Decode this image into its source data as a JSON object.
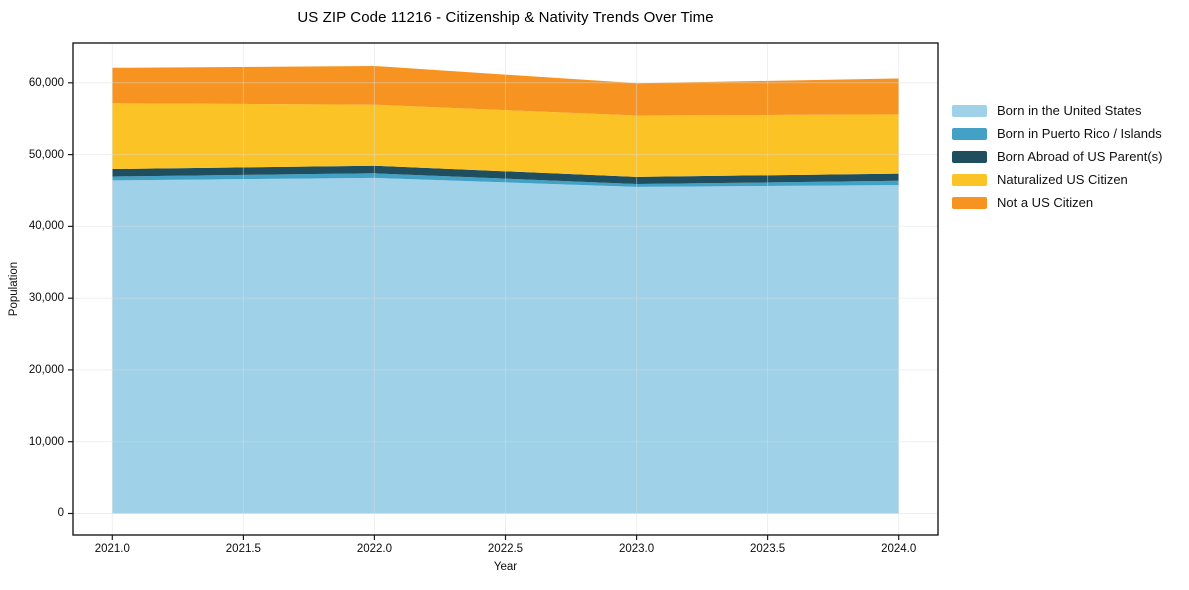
{
  "chart_data": {
    "type": "area",
    "stacked": true,
    "title": "US ZIP Code 11216 - Citizenship & Nativity Trends Over Time",
    "xlabel": "Year",
    "ylabel": "Population",
    "x": [
      2021,
      2022,
      2023,
      2024
    ],
    "series": [
      {
        "name": "Born in the United States",
        "color": "#9fd1e8",
        "values": [
          46400,
          46750,
          45500,
          45750
        ]
      },
      {
        "name": "Born in Puerto Rico / Islands",
        "color": "#42a1c4",
        "values": [
          550,
          650,
          400,
          600
        ]
      },
      {
        "name": "Born Abroad of US Parent(s)",
        "color": "#1f4e5f",
        "values": [
          1050,
          1050,
          1000,
          1000
        ]
      },
      {
        "name": "Naturalized US Citizen",
        "color": "#fcc327",
        "values": [
          9150,
          8500,
          8550,
          8250
        ]
      },
      {
        "name": "Not a US Citizen",
        "color": "#f79421",
        "values": [
          4950,
          5400,
          4500,
          5000
        ]
      }
    ],
    "xticks": [
      2021.0,
      2021.5,
      2022.0,
      2022.5,
      2023.0,
      2023.5,
      2024.0
    ],
    "xtick_labels": [
      "2021.0",
      "2021.5",
      "2022.0",
      "2022.5",
      "2023.0",
      "2023.5",
      "2024.0"
    ],
    "yticks": [
      0,
      10000,
      20000,
      30000,
      40000,
      50000,
      60000
    ],
    "ytick_labels": [
      "0",
      "10,000",
      "20,000",
      "30,000",
      "40,000",
      "50,000",
      "60,000"
    ],
    "xlim": [
      2020.85,
      2024.15
    ],
    "ylim": [
      -3000,
      65550
    ],
    "grid": true,
    "legend_position": "right"
  }
}
